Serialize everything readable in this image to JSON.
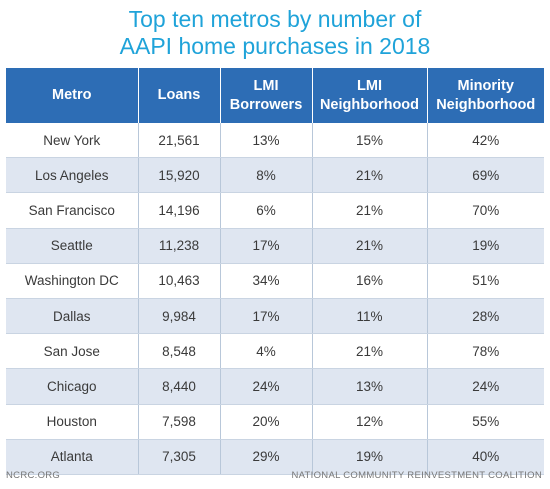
{
  "title": {
    "line1": "Top ten metros by number of",
    "line2": "AAPI home purchases in 2018"
  },
  "colors": {
    "title": "#1fa3d9",
    "header_bg": "#2d6db5",
    "row_alt_bg": "#dfe6f1"
  },
  "chart_data": {
    "type": "table",
    "columns": [
      [
        "Metro"
      ],
      [
        "Loans"
      ],
      [
        "LMI",
        "Borrowers"
      ],
      [
        "LMI",
        "Neighborhood"
      ],
      [
        "Minority",
        "Neighborhood"
      ]
    ],
    "rows": [
      [
        "New York",
        "21,561",
        "13%",
        "15%",
        "42%"
      ],
      [
        "Los Angeles",
        "15,920",
        "8%",
        "21%",
        "69%"
      ],
      [
        "San Francisco",
        "14,196",
        "6%",
        "21%",
        "70%"
      ],
      [
        "Seattle",
        "11,238",
        "17%",
        "21%",
        "19%"
      ],
      [
        "Washington DC",
        "10,463",
        "34%",
        "16%",
        "51%"
      ],
      [
        "Dallas",
        "9,984",
        "17%",
        "11%",
        "28%"
      ],
      [
        "San Jose",
        "8,548",
        "4%",
        "21%",
        "78%"
      ],
      [
        "Chicago",
        "8,440",
        "24%",
        "13%",
        "24%"
      ],
      [
        "Houston",
        "7,598",
        "20%",
        "12%",
        "55%"
      ],
      [
        "Atlanta",
        "7,305",
        "29%",
        "19%",
        "40%"
      ]
    ]
  },
  "footer": {
    "left": "NCRC.ORG",
    "right": "NATIONAL COMMUNITY REINVESTMENT COALITION"
  }
}
